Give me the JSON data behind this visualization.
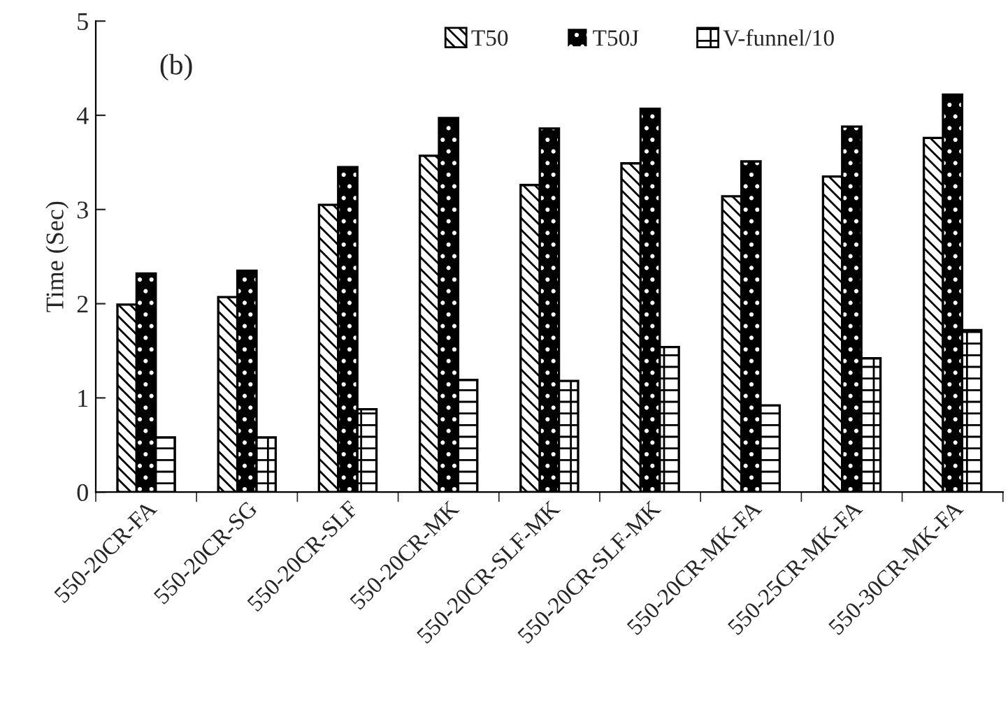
{
  "chart_data": {
    "type": "bar",
    "ylabel": "Time (Sec)",
    "categories": [
      "550-20CR-FA",
      "550-20CR-SG",
      "550-20CR-SLF",
      "550-20CR-MK",
      "550-20CR-SLF-MK",
      "550-20CR-SLF-MK",
      "550-20CR-MK-FA",
      "550-25CR-MK-FA",
      "550-30CR-MK-FA"
    ],
    "series": [
      {
        "name": "T50",
        "color": "#ffffff",
        "values": [
          1.99,
          2.07,
          3.05,
          3.57,
          3.26,
          3.49,
          3.14,
          3.35,
          3.76
        ]
      },
      {
        "name": "T50J",
        "color": "#000000",
        "values": [
          2.32,
          2.35,
          3.45,
          3.97,
          3.86,
          4.07,
          3.51,
          3.88,
          4.22
        ]
      },
      {
        "name": "V-funnel/10",
        "color": "#ffffff",
        "values": [
          0.58,
          0.58,
          0.88,
          1.19,
          1.18,
          1.54,
          0.92,
          1.42,
          1.72
        ]
      }
    ],
    "ylim": [
      0,
      5
    ],
    "yticks": [
      0,
      1,
      2,
      3,
      4,
      5
    ],
    "annotations": [
      "(b)"
    ],
    "legend": "top",
    "grid": false
  }
}
